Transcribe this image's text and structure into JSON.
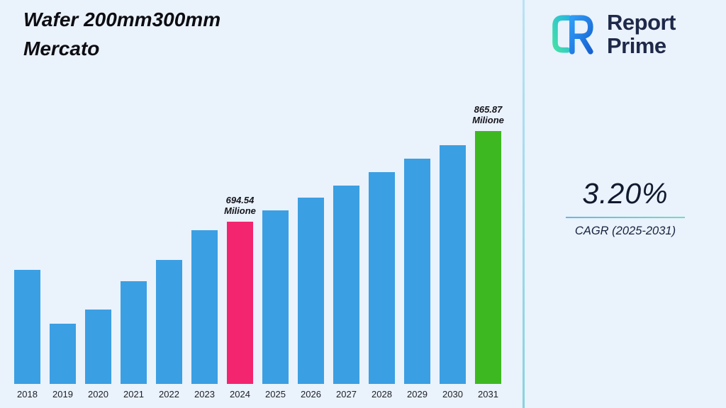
{
  "theme": {
    "background": "#eaf2fb",
    "divider_top": "#b9e2f6",
    "divider_bottom": "#86d3e0",
    "underline_left": "#64b9e6",
    "underline_right": "#6fdec4",
    "brand_text_color": "#1e2949"
  },
  "header": {
    "title_line1": "Wafer 200mm300mm",
    "title_line2": "Mercato"
  },
  "brand": {
    "line1": "Report",
    "line2": "Prime",
    "logo_icon": "report-prime-monogram"
  },
  "stats": {
    "cagr_value": "3.20%",
    "cagr_label": "CAGR (2025-2031)"
  },
  "chart_data": {
    "type": "bar",
    "title": "Wafer 200mm300mm Mercato",
    "unit": "Milione",
    "xlabel": "",
    "ylabel": "",
    "categories": [
      "2018",
      "2019",
      "2020",
      "2021",
      "2022",
      "2023",
      "2024",
      "2025",
      "2026",
      "2027",
      "2028",
      "2029",
      "2030",
      "2031"
    ],
    "values": [
      605,
      503,
      530,
      583,
      623,
      679,
      694.54,
      716.77,
      739.7,
      763.37,
      787.8,
      813.01,
      839.03,
      865.87
    ],
    "annotations": [
      {
        "category": "2024",
        "lines": [
          "694.54",
          "Milione"
        ]
      },
      {
        "category": "2031",
        "lines": [
          "865.87",
          "Milione"
        ]
      }
    ],
    "colors": {
      "bar_default": "#3b9fe3"
    },
    "highlights": {
      "2024": "#f4256f",
      "2031": "#3eb821"
    },
    "axis": {
      "baseline_value": 390,
      "max_value": 880,
      "gridlines": false,
      "y_axis_labels_visible": false
    },
    "legend": null
  }
}
